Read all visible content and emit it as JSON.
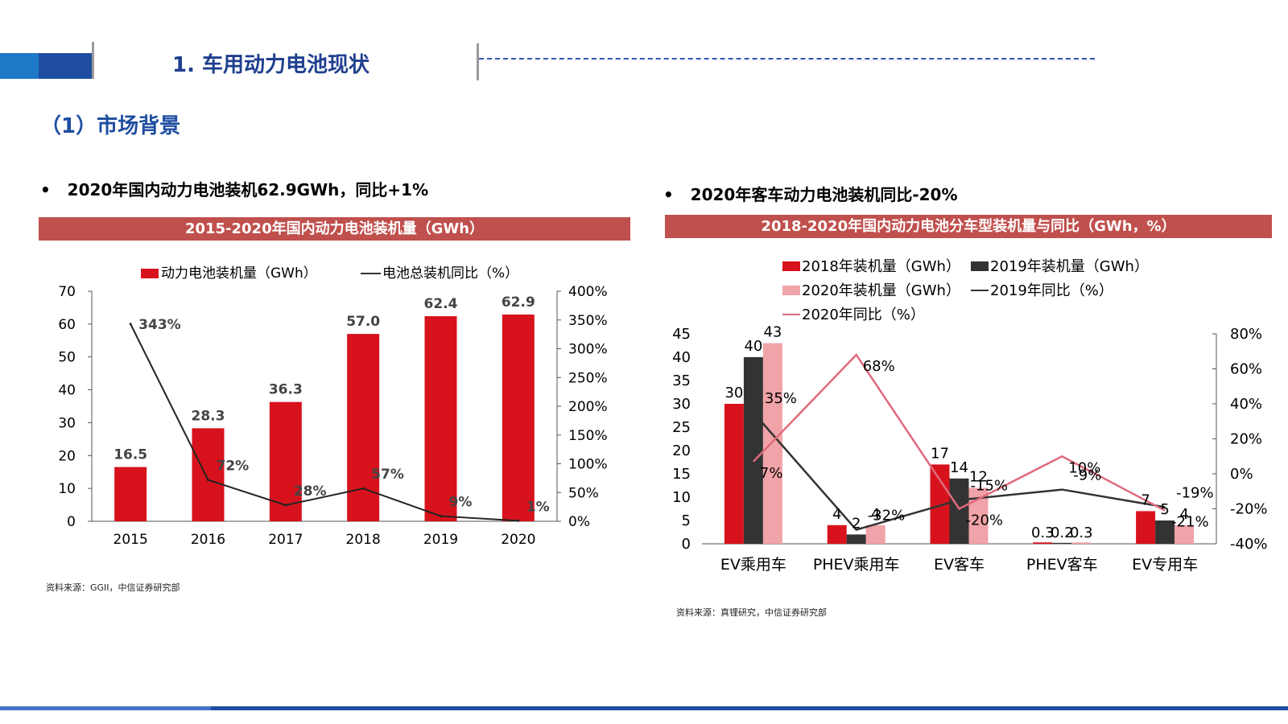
{
  "header": {
    "title": "1. 车用动力电池现状",
    "subtitle": "（1）市场背景"
  },
  "left": {
    "bullet": "2020年国内动力电池装机62.9GWh，同比+1%",
    "banner": "2015-2020年国内动力电池装机量（GWh）",
    "source": "资料来源：GGII，中信证券研究部"
  },
  "right": {
    "bullet": "2020年客车动力电池装机同比-20%",
    "banner": "2018-2020年国内动力电池分车型装机量与同比（GWh，%）",
    "source": "资料来源：真锂研究，中信证券研究部"
  },
  "colors": {
    "red": "#d7121c",
    "dark": "#333333",
    "pink": "#f0a3a8",
    "line_pink": "#e06a7c",
    "banner": "#c0504d",
    "brand_blue": "#1f4ea0"
  },
  "chart_data": [
    {
      "type": "bar",
      "categories": [
        "2015",
        "2016",
        "2017",
        "2018",
        "2019",
        "2020"
      ],
      "series": [
        {
          "name": "动力电池装机量（GWh）",
          "type": "bar",
          "axis": "left",
          "values": [
            16.5,
            28.3,
            36.3,
            57.0,
            62.4,
            62.9
          ],
          "labels": [
            "16.5",
            "28.3",
            "36.3",
            "57.0",
            "62.4",
            "62.9"
          ]
        },
        {
          "name": "电池总装机同比（%）",
          "type": "line",
          "axis": "right",
          "values": [
            343,
            72,
            28,
            57,
            9,
            1
          ],
          "labels": [
            "343%",
            "72%",
            "28%",
            "57%",
            "9%",
            "1%"
          ]
        }
      ],
      "y_left": {
        "range": [
          0,
          70
        ],
        "ticks": [
          "0",
          "10",
          "20",
          "30",
          "40",
          "50",
          "60",
          "70"
        ]
      },
      "y_right": {
        "range": [
          0,
          400
        ],
        "ticks": [
          "0%",
          "50%",
          "100%",
          "150%",
          "200%",
          "250%",
          "300%",
          "350%",
          "400%"
        ]
      },
      "legend_position": "top"
    },
    {
      "type": "bar",
      "categories": [
        "EV乘用车",
        "PHEV乘用车",
        "EV客车",
        "PHEV客车",
        "EV专用车"
      ],
      "series": [
        {
          "name": "2018年装机量（GWh）",
          "type": "bar",
          "axis": "left",
          "values": [
            30,
            4,
            17,
            0.3,
            7
          ],
          "labels": [
            "30",
            "4",
            "17",
            "0.3",
            "7"
          ]
        },
        {
          "name": "2019年装机量（GWh）",
          "type": "bar",
          "axis": "left",
          "values": [
            40,
            2,
            14,
            0.2,
            5
          ],
          "labels": [
            "40",
            "2",
            "14",
            "0.2",
            "5"
          ]
        },
        {
          "name": "2020年装机量（GWh）",
          "type": "bar",
          "axis": "left",
          "values": [
            43,
            4,
            12,
            0.3,
            4
          ],
          "labels": [
            "43",
            "4",
            "12",
            "0.3",
            "4"
          ]
        },
        {
          "name": "2019年同比（%）",
          "type": "line",
          "axis": "right",
          "values": [
            35,
            -32,
            -15,
            -9,
            -19
          ],
          "labels": [
            "35%",
            "-32%",
            "-15%",
            "-9%",
            "-19%"
          ]
        },
        {
          "name": "2020年同比（%）",
          "type": "line",
          "axis": "right",
          "values": [
            7,
            68,
            -20,
            10,
            -21
          ],
          "labels": [
            "7%",
            "68%",
            "-20%",
            "10%",
            "-21%"
          ]
        }
      ],
      "y_left": {
        "range": [
          0,
          45
        ],
        "ticks": [
          "0",
          "5",
          "10",
          "15",
          "20",
          "25",
          "30",
          "35",
          "40",
          "45"
        ]
      },
      "y_right": {
        "range": [
          -40,
          80
        ],
        "ticks": [
          "-40%",
          "-20%",
          "0%",
          "20%",
          "40%",
          "60%",
          "80%"
        ]
      },
      "legend_position": "top"
    }
  ]
}
